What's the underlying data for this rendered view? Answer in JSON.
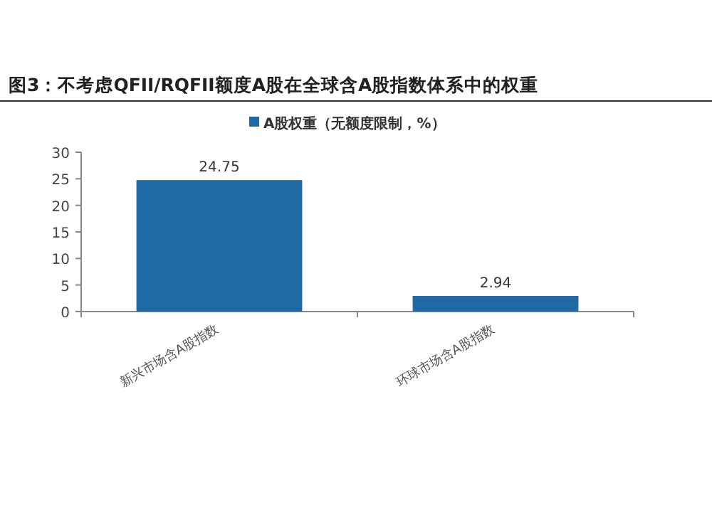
{
  "chart_data": {
    "type": "bar",
    "title": "图3：不考虑QFII/RQFII额度A股在全球含A股指数体系中的权重",
    "categories": [
      "新兴市场含A股指数",
      "环球市场含A股指数"
    ],
    "series": [
      {
        "name": "A股权重（无额度限制，%）",
        "color": "#1f6aa5",
        "values": [
          24.75,
          2.94
        ]
      }
    ],
    "ylim": [
      0,
      30
    ],
    "yticks": [
      0,
      5,
      10,
      15,
      20,
      25,
      30
    ],
    "data_labels": true,
    "legend": "top",
    "grid": false
  }
}
